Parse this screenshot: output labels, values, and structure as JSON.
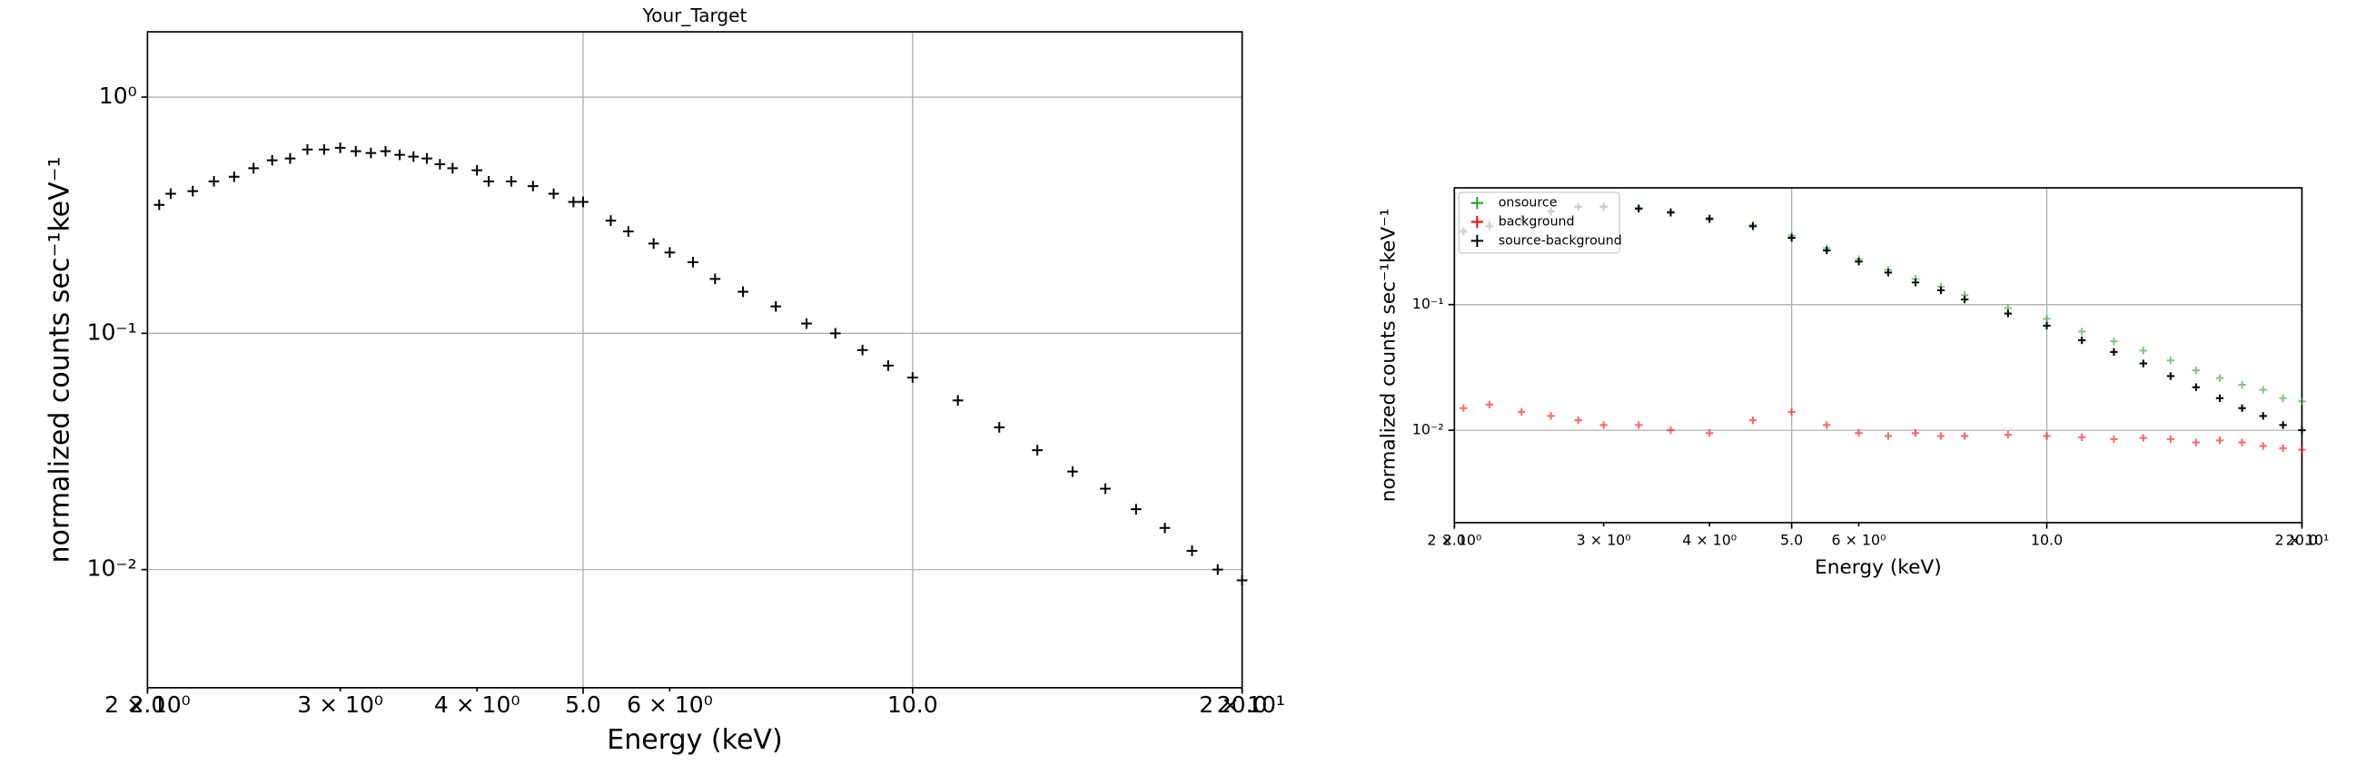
{
  "chart_data": [
    {
      "type": "scatter",
      "title": "Your_Target",
      "xlabel": "Energy (keV)",
      "ylabel": "normalized counts sec⁻¹keV⁻¹",
      "xscale": "log",
      "yscale": "log",
      "xlim": [
        2,
        20
      ],
      "ylim": [
        0.00316,
        1.89
      ],
      "xticks": [
        {
          "value": 2,
          "label": "2.0"
        },
        {
          "value": 5,
          "label": "5.0"
        },
        {
          "value": 10,
          "label": "10.0"
        },
        {
          "value": 20,
          "label": "20.0"
        }
      ],
      "xminor_ticks": [
        {
          "value": 2,
          "label": "2 × 10⁰"
        },
        {
          "value": 3,
          "label": "3 × 10⁰"
        },
        {
          "value": 4,
          "label": "4 × 10⁰"
        },
        {
          "value": 6,
          "label": "6 × 10⁰"
        },
        {
          "value": 20,
          "label": "2 × 10¹"
        }
      ],
      "yticks": [
        {
          "value": 1,
          "label": "10⁰"
        },
        {
          "value": 0.1,
          "label": "10⁻¹"
        },
        {
          "value": 0.01,
          "label": "10⁻²"
        }
      ],
      "grid": true,
      "color": "#000000",
      "x": [
        2.05,
        2.1,
        2.2,
        2.3,
        2.4,
        2.5,
        2.6,
        2.7,
        2.8,
        2.9,
        3.0,
        3.1,
        3.2,
        3.3,
        3.4,
        3.5,
        3.6,
        3.7,
        3.8,
        4.0,
        4.1,
        4.3,
        4.5,
        4.7,
        4.9,
        5.0,
        5.3,
        5.5,
        5.8,
        6.0,
        6.3,
        6.6,
        7.0,
        7.5,
        8.0,
        8.5,
        9.0,
        9.5,
        10,
        11,
        12,
        13,
        14,
        15,
        16,
        17,
        18,
        19,
        20
      ],
      "values": [
        0.35,
        0.39,
        0.4,
        0.44,
        0.46,
        0.5,
        0.54,
        0.55,
        0.6,
        0.6,
        0.61,
        0.59,
        0.58,
        0.59,
        0.57,
        0.56,
        0.55,
        0.52,
        0.5,
        0.49,
        0.44,
        0.44,
        0.42,
        0.39,
        0.36,
        0.36,
        0.3,
        0.27,
        0.24,
        0.22,
        0.2,
        0.17,
        0.15,
        0.13,
        0.11,
        0.1,
        0.085,
        0.073,
        0.065,
        0.052,
        0.04,
        0.032,
        0.026,
        0.022,
        0.018,
        0.015,
        0.012,
        0.01,
        0.009
      ]
    },
    {
      "type": "scatter",
      "xlabel": "Energy (keV)",
      "ylabel": "normalized counts sec⁻¹keV⁻¹",
      "xscale": "log",
      "yscale": "log",
      "xlim": [
        2,
        20
      ],
      "ylim": [
        0.00184,
        0.85
      ],
      "xticks": [
        {
          "value": 2,
          "label": "2.0"
        },
        {
          "value": 5,
          "label": "5.0"
        },
        {
          "value": 10,
          "label": "10.0"
        },
        {
          "value": 20,
          "label": "20.0"
        }
      ],
      "xminor_ticks": [
        {
          "value": 2,
          "label": "2 × 10⁰"
        },
        {
          "value": 3,
          "label": "3 × 10⁰"
        },
        {
          "value": 4,
          "label": "4 × 10⁰"
        },
        {
          "value": 6,
          "label": "6 × 10⁰"
        },
        {
          "value": 20,
          "label": "2 × 10¹"
        }
      ],
      "yticks": [
        {
          "value": 0.1,
          "label": "10⁻¹"
        },
        {
          "value": 0.01,
          "label": "10⁻²"
        }
      ],
      "grid": true,
      "legend": "upper left",
      "x": [
        2.05,
        2.2,
        2.4,
        2.6,
        2.8,
        3.0,
        3.3,
        3.6,
        4.0,
        4.5,
        5.0,
        5.5,
        6.0,
        6.5,
        7.0,
        7.5,
        8,
        9,
        10,
        11,
        12,
        13,
        14,
        15,
        16,
        17,
        18,
        19,
        20
      ],
      "series": [
        {
          "name": "onsource",
          "color": "#2ca02c",
          "values": [
            0.395,
            0.436,
            0.494,
            0.563,
            0.612,
            0.611,
            0.591,
            0.55,
            0.49,
            0.432,
            0.354,
            0.281,
            0.23,
            0.189,
            0.16,
            0.139,
            0.119,
            0.094,
            0.077,
            0.061,
            0.051,
            0.043,
            0.036,
            0.03,
            0.026,
            0.023,
            0.021,
            0.018,
            0.017
          ]
        },
        {
          "name": "background",
          "color": "#ff0000",
          "values": [
            0.015,
            0.016,
            0.014,
            0.013,
            0.012,
            0.011,
            0.011,
            0.01,
            0.0095,
            0.012,
            0.014,
            0.011,
            0.0095,
            0.009,
            0.0095,
            0.009,
            0.009,
            0.0092,
            0.009,
            0.0088,
            0.0085,
            0.0087,
            0.0085,
            0.008,
            0.0083,
            0.008,
            0.0075,
            0.0072,
            0.007
          ]
        },
        {
          "name": "source-background",
          "color": "#000000",
          "values": [
            0.38,
            0.42,
            0.48,
            0.55,
            0.6,
            0.6,
            0.58,
            0.54,
            0.48,
            0.42,
            0.34,
            0.27,
            0.22,
            0.18,
            0.15,
            0.13,
            0.11,
            0.085,
            0.068,
            0.052,
            0.042,
            0.034,
            0.027,
            0.022,
            0.018,
            0.015,
            0.013,
            0.011,
            0.01
          ]
        }
      ]
    }
  ]
}
